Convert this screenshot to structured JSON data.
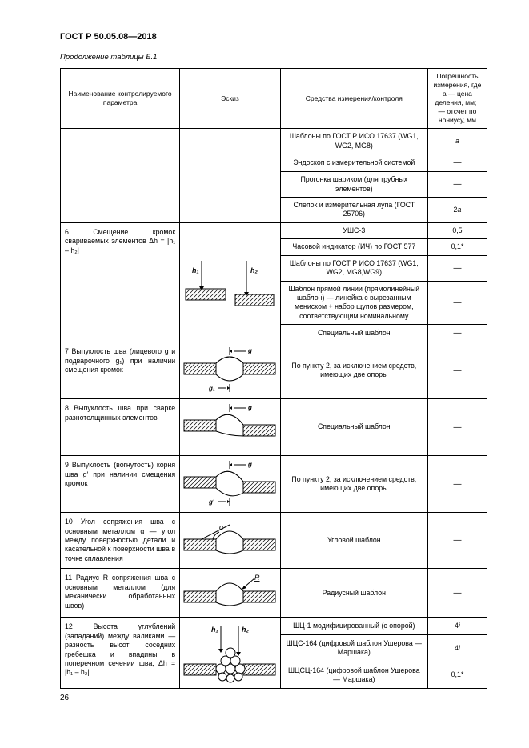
{
  "header": "ГОСТ Р 50.05.08—2018",
  "caption": "Продолжение таблицы Б.1",
  "cols": {
    "name": "Наименование контролируемого параметра",
    "sketch": "Эскиз",
    "means": "Средства измерения/контроля",
    "err": "Погрешность измерения, где a — цена деления, мм; i — отсчет по нониусу, мм"
  },
  "top_rows": [
    {
      "means": "Шаблоны по ГОСТ Р ИСО 17637 (WG1, WG2, MG8)",
      "err": "a"
    },
    {
      "means": "Эндоскоп с измерительной системой",
      "err": "—"
    },
    {
      "means": "Прогонка шариком (для трубных элементов)",
      "err": "—"
    },
    {
      "means": "Слепок и измерительная лупа (ГОСТ 25706)",
      "err": "2a"
    }
  ],
  "rows": [
    {
      "param": "6 Смещение кромок свариваемых элементов Δh = |h₁ – h₂|",
      "sketch": "offset",
      "sub": [
        {
          "means": "УШС-3",
          "err": "0,5"
        },
        {
          "means": "Часовой индикатор (ИЧ) по ГОСТ 577",
          "err": "0,1*"
        },
        {
          "means": "Шаблоны по ГОСТ Р ИСО 17637 (WG1, WG2, MG8,WG9)",
          "err": "—"
        },
        {
          "means": "Шаблон прямой линии (прямолинейный шаблон) — линейка с вырезанным мениском + набор щупов размером, соответствующим номинальному",
          "err": "—"
        },
        {
          "means": "Специальный шаблон",
          "err": "—"
        }
      ]
    },
    {
      "param": "7 Выпуклость шва (лицевого g и подварочного g₁) при наличии смещения кромок",
      "sketch": "weld1",
      "sub": [
        {
          "means": "По пункту 2, за исключением средств, имеющих две опоры",
          "err": "—"
        }
      ]
    },
    {
      "param": "8 Выпуклость шва при сварке разнотолщинных элементов",
      "sketch": "weld2",
      "sub": [
        {
          "means": "Специальный шаблон",
          "err": "—"
        }
      ]
    },
    {
      "param": "9 Выпуклость (вогнутость) корня шва g′ при наличии смещения кромок",
      "sketch": "weld3",
      "sub": [
        {
          "means": "По пункту 2, за исключением средств, имеющих две опоры",
          "err": "—"
        }
      ]
    },
    {
      "param": "10 Угол сопряжения шва с основным металлом α — угол между поверхностью детали и касательной к поверхности шва в точке сплавления",
      "sketch": "angle",
      "sub": [
        {
          "means": "Угловой шаблон",
          "err": "—"
        }
      ]
    },
    {
      "param": "11 Радиус R сопряжения шва с основным металлом (для механически обработанных швов)",
      "sketch": "radius",
      "sub": [
        {
          "means": "Радиусный шаблон",
          "err": "—"
        }
      ]
    },
    {
      "param": "12 Высота углублений (западаний) между валиками — разность высот соседних гребешка и впадины в поперечном сечении шва, Δh = |h₁ – h₂|",
      "sketch": "beads",
      "sub": [
        {
          "means": "ШЦ-1 модифицированный (с опорой)",
          "err": "4i"
        },
        {
          "means": "ШЦС-164 (цифровой шаблон Ушерова — Маршака)",
          "err": "4i"
        },
        {
          "means": "ШЦСЦ-164 (цифровой шаблон Ушерова — Маршака)",
          "err": "0,1*"
        }
      ]
    }
  ],
  "page": "26"
}
